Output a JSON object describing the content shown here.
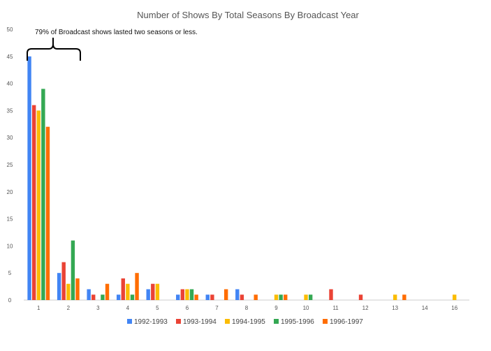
{
  "chart_data": {
    "type": "bar",
    "title": "Number of Shows By Total Seasons By Broadcast Year",
    "xlabel": "",
    "ylabel": "",
    "ylim": [
      0,
      50
    ],
    "yticks": [
      0,
      5,
      10,
      15,
      20,
      25,
      30,
      35,
      40,
      45,
      50
    ],
    "categories": [
      "1",
      "2",
      "3",
      "4",
      "5",
      "6",
      "7",
      "8",
      "9",
      "10",
      "11",
      "12",
      "13",
      "14",
      "16"
    ],
    "series": [
      {
        "name": "1992-1993",
        "color": "#4285F4",
        "values": [
          45,
          5,
          2,
          1,
          2,
          1,
          1,
          2,
          0,
          0,
          0,
          0,
          0,
          0,
          0
        ]
      },
      {
        "name": "1993-1994",
        "color": "#EA4335",
        "values": [
          36,
          7,
          1,
          4,
          3,
          2,
          1,
          1,
          0,
          0,
          2,
          1,
          0,
          0,
          0
        ]
      },
      {
        "name": "1994-1995",
        "color": "#FBBC04",
        "values": [
          35,
          3,
          0,
          3,
          3,
          2,
          0,
          0,
          1,
          1,
          0,
          0,
          1,
          0,
          1
        ]
      },
      {
        "name": "1995-1996",
        "color": "#34A853",
        "values": [
          39,
          11,
          1,
          1,
          0,
          2,
          0,
          0,
          1,
          1,
          0,
          0,
          0,
          0,
          0
        ]
      },
      {
        "name": "1996-1997",
        "color": "#FF6D01",
        "values": [
          32,
          4,
          3,
          5,
          0,
          1,
          2,
          1,
          1,
          0,
          0,
          0,
          1,
          0,
          0
        ]
      }
    ],
    "annotation": "79% of Broadcast shows lasted two seasons or less.",
    "grid": false,
    "legend_position": "bottom"
  }
}
